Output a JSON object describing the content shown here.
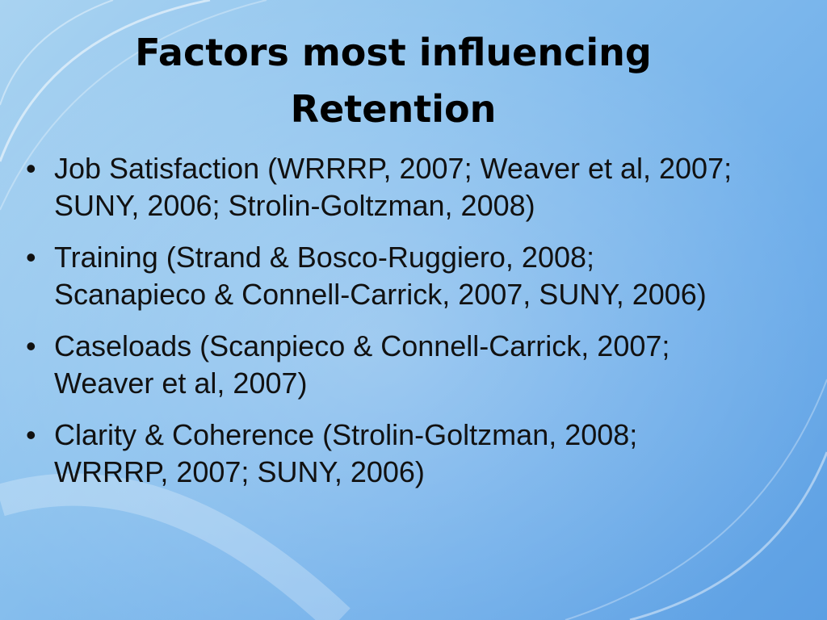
{
  "title": "Factors most influencing Retention",
  "bullets": [
    "Job Satisfaction (WRRRP, 2007; Weaver et al, 2007; SUNY, 2006; Strolin-Goltzman, 2008)",
    "Training (Strand & Bosco-Ruggiero, 2008; Scanapieco & Connell-Carrick, 2007, SUNY, 2006)",
    "Caseloads (Scanpieco & Connell-Carrick, 2007; Weaver et al, 2007)",
    "Clarity & Coherence (Strolin-Goltzman, 2008; WRRRP, 2007; SUNY, 2006)"
  ]
}
